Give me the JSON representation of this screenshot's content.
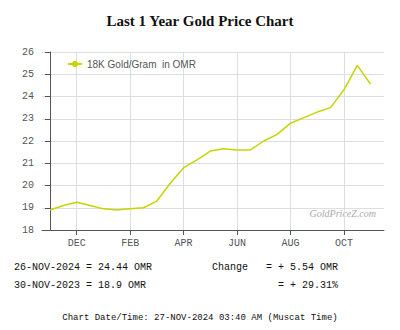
{
  "chart_data": {
    "type": "line",
    "title": "Last 1 Year Gold Price Chart",
    "x": [
      0,
      0.5,
      1,
      1.5,
      2,
      2.5,
      3,
      3.5,
      4,
      4.5,
      5,
      5.5,
      6,
      6.5,
      7,
      7.5,
      8,
      8.5,
      9,
      9.5,
      10,
      10.5,
      11,
      11.5,
      12
    ],
    "series": [
      {
        "name": "18K Gold/Gram  in OMR",
        "color": "#c8d400",
        "values": [
          18.9,
          19.1,
          19.25,
          19.1,
          18.95,
          18.9,
          18.95,
          19.0,
          19.3,
          20.1,
          20.8,
          21.15,
          21.55,
          21.65,
          21.6,
          21.6,
          22.0,
          22.3,
          22.8,
          23.05,
          23.3,
          23.5,
          24.3,
          25.4,
          24.55
        ]
      }
    ],
    "xlim": [
      -0.3,
      12.5
    ],
    "xticks": [
      {
        "value": 1,
        "label": "DEC"
      },
      {
        "value": 3,
        "label": "FEB"
      },
      {
        "value": 5,
        "label": "APR"
      },
      {
        "value": 7,
        "label": "JUN"
      },
      {
        "value": 9,
        "label": "AUG"
      },
      {
        "value": 11,
        "label": "OCT"
      }
    ],
    "ylim": [
      18,
      26
    ],
    "yticks": [
      18,
      19,
      20,
      21,
      22,
      23,
      24,
      25,
      26
    ],
    "grid": true,
    "legend": "upper left",
    "annotations": [
      "GoldPriceZ.com",
      "26-NOV-2024 = 24.44 OMR",
      "30-NOV-2023 = 18.9 OMR",
      "Change   = + 5.54 OMR",
      "           = + 29.31%",
      "Chart Date/Time: 27-NOV-2024 03:40 AM (Muscat Time)"
    ]
  }
}
